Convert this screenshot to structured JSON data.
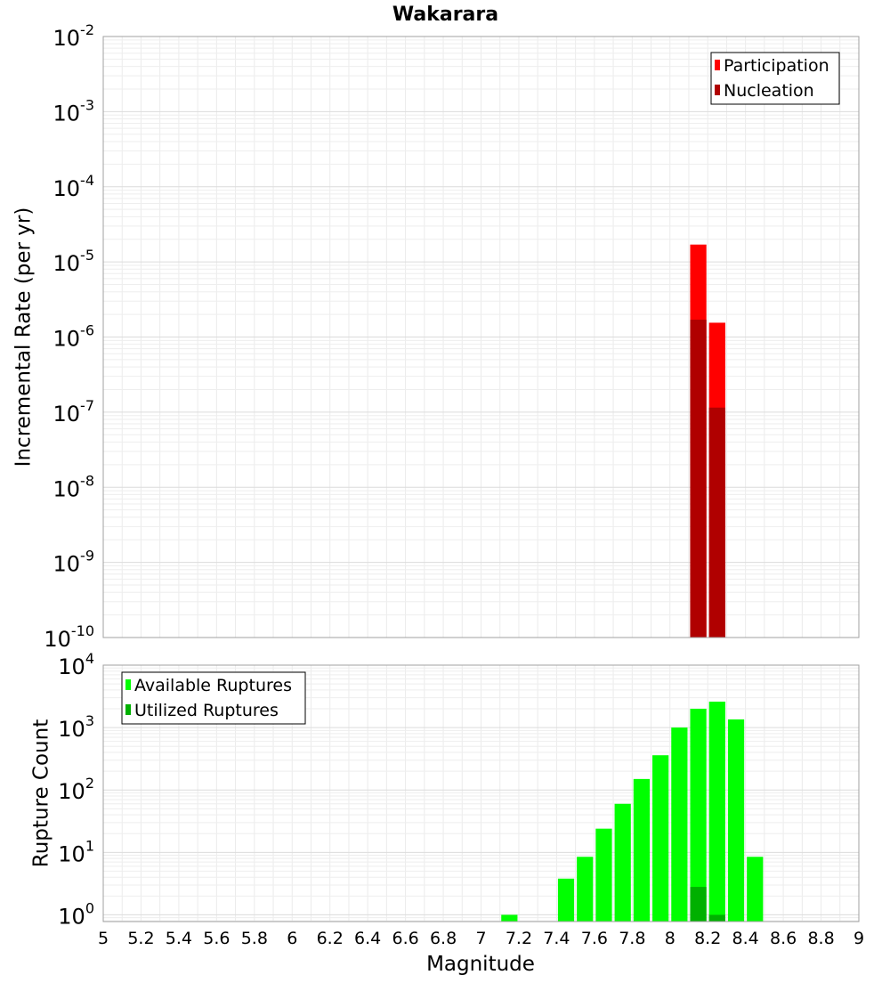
{
  "chart_data": [
    {
      "type": "bar",
      "title": "Wakarara",
      "ylabel": "Incremental Rate (per yr)",
      "xlabel": "",
      "xlim": [
        5,
        9
      ],
      "ylim": [
        1e-10,
        0.01
      ],
      "y_scale": "log",
      "y_ticks": [
        {
          "base": "10",
          "exp": "-2"
        },
        {
          "base": "10",
          "exp": "-3"
        },
        {
          "base": "10",
          "exp": "-4"
        },
        {
          "base": "10",
          "exp": "-5"
        },
        {
          "base": "10",
          "exp": "-6"
        },
        {
          "base": "10",
          "exp": "-7"
        },
        {
          "base": "10",
          "exp": "-8"
        },
        {
          "base": "10",
          "exp": "-9"
        },
        {
          "base": "10",
          "exp": "-10"
        }
      ],
      "bar_width": 0.1,
      "grid": true,
      "legend_position": "top-right",
      "series": [
        {
          "name": "Participation",
          "color": "#ff0000",
          "x": [
            8.15,
            8.25
          ],
          "values": [
            1.7e-05,
            1.55e-06
          ]
        },
        {
          "name": "Nucleation",
          "color": "#b00000",
          "x": [
            8.15,
            8.25
          ],
          "values": [
            1.7e-06,
            1.15e-07
          ]
        }
      ]
    },
    {
      "type": "bar",
      "title": "",
      "ylabel": "Rupture Count",
      "xlabel": "Magnitude",
      "xlim": [
        5,
        9
      ],
      "ylim": [
        0.78,
        10000
      ],
      "y_scale": "log",
      "y_ticks": [
        {
          "base": "10",
          "exp": "4"
        },
        {
          "base": "10",
          "exp": "3"
        },
        {
          "base": "10",
          "exp": "2"
        },
        {
          "base": "10",
          "exp": "1"
        },
        {
          "base": "10",
          "exp": "0"
        }
      ],
      "x_ticks": [
        "5",
        "5.2",
        "5.4",
        "5.6",
        "5.8",
        "6",
        "6.2",
        "6.4",
        "6.6",
        "6.8",
        "7",
        "7.2",
        "7.4",
        "7.6",
        "7.8",
        "8",
        "8.2",
        "8.4",
        "8.6",
        "8.8",
        "9"
      ],
      "bar_width": 0.1,
      "grid": true,
      "legend_position": "top-left",
      "series": [
        {
          "name": "Available Ruptures",
          "color": "#00ff00",
          "x": [
            7.15,
            7.45,
            7.55,
            7.65,
            7.75,
            7.85,
            7.95,
            8.05,
            8.15,
            8.25,
            8.35,
            8.45
          ],
          "values": [
            1,
            3.8,
            8.5,
            24,
            60,
            150,
            360,
            1000,
            2000,
            2600,
            1350,
            8.5
          ]
        },
        {
          "name": "Utilized Ruptures",
          "color": "#00b000",
          "x": [
            8.15,
            8.25
          ],
          "values": [
            2.8,
            1
          ]
        }
      ]
    }
  ]
}
